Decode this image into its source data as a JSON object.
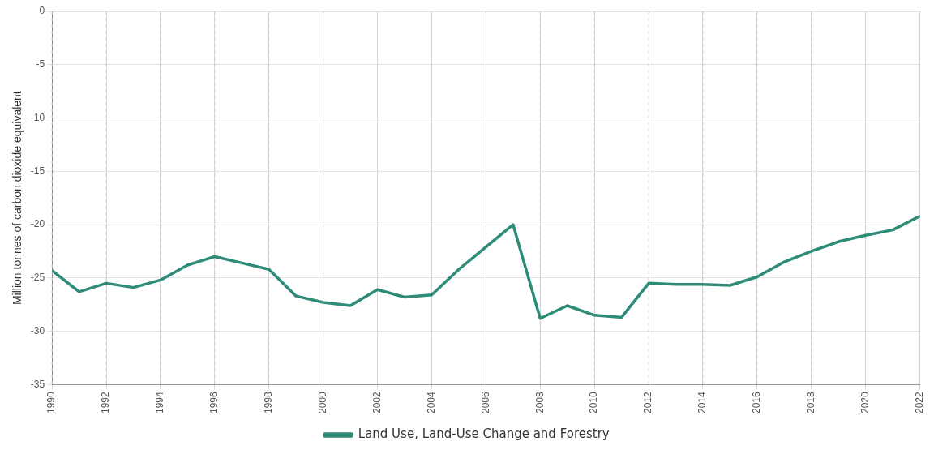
{
  "chart_data": {
    "type": "line",
    "ylabel": "Million tonnes of carbon dioxide equivalent",
    "x": [
      1990,
      1991,
      1992,
      1993,
      1994,
      1995,
      1996,
      1997,
      1998,
      1999,
      2000,
      2001,
      2002,
      2003,
      2004,
      2005,
      2006,
      2007,
      2008,
      2009,
      2010,
      2011,
      2012,
      2013,
      2014,
      2015,
      2016,
      2017,
      2018,
      2019,
      2020,
      2021,
      2022
    ],
    "series": [
      {
        "name": "Land Use, Land-Use Change and Forestry",
        "color": "#2e8b78",
        "values": [
          -24.3,
          -26.3,
          -25.5,
          -25.9,
          -25.2,
          -23.8,
          -23.0,
          -23.6,
          -24.2,
          -26.7,
          -27.3,
          -27.6,
          -26.1,
          -26.8,
          -26.6,
          -24.2,
          -22.1,
          -20.0,
          -28.8,
          -27.6,
          -28.5,
          -28.7,
          -25.5,
          -25.6,
          -25.6,
          -25.7,
          -24.9,
          -23.5,
          -22.5,
          -21.6,
          -21.0,
          -20.5,
          -19.2
        ]
      }
    ],
    "xlim": [
      1990,
      2022
    ],
    "xticks": [
      1990,
      1992,
      1994,
      1996,
      1998,
      2000,
      2002,
      2004,
      2006,
      2008,
      2010,
      2012,
      2014,
      2016,
      2018,
      2020,
      2022
    ],
    "ylim": [
      -35,
      0
    ],
    "yticks": [
      -35,
      -30,
      -25,
      -20,
      -15,
      -10,
      -5,
      0
    ],
    "grid": true,
    "legend": "bottom",
    "marker": "none",
    "line_style": "solid"
  }
}
